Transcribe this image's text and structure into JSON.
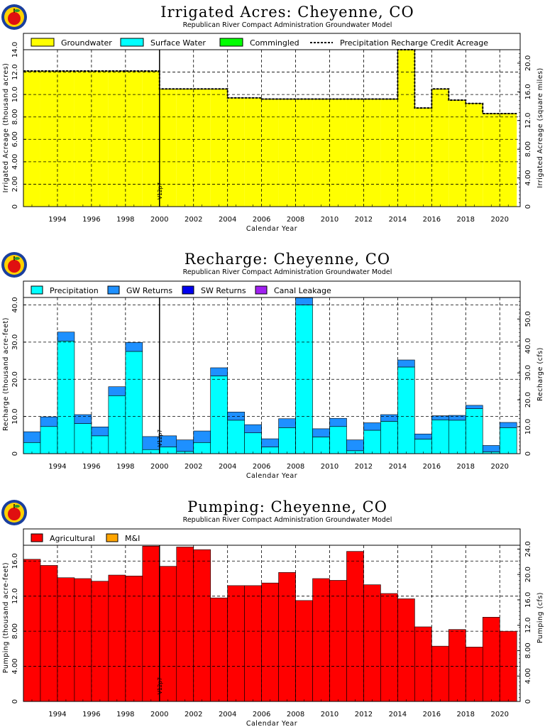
{
  "chart_data": [
    {
      "id": "acres",
      "type": "area",
      "title": "Irrigated Acres: Cheyenne, CO",
      "subtitle": "Republican River Compact Administration Groundwater Model",
      "xlabel": "Calendar Year",
      "ylabel": "Irrigated Acreage (thousand acres)",
      "y2label": "Irrigated Acreage (square miles)",
      "xlim": [
        1992.5,
        2021.7
      ],
      "ylim": [
        0,
        14.0
      ],
      "y2lim": [
        0,
        21.875
      ],
      "yticks": [
        "0",
        "2.00",
        "4.00",
        "6.00",
        "8.00",
        "10.0",
        "12.0",
        "14.0"
      ],
      "y2ticks": [
        "0",
        "4.00",
        "8.00",
        "12.0",
        "16.0",
        "20.0"
      ],
      "xticks": [
        "1994",
        "1996",
        "1998",
        "2000",
        "2002",
        "2004",
        "2006",
        "2008",
        "2010",
        "2012",
        "2014",
        "2016",
        "2018",
        "2020"
      ],
      "grid": true,
      "legend_position": "top",
      "marker": {
        "x": 2000.5,
        "label": "V12p7"
      },
      "x": [
        1993,
        1994,
        1995,
        1996,
        1997,
        1998,
        1999,
        2000,
        2001,
        2002,
        2003,
        2004,
        2005,
        2006,
        2007,
        2008,
        2009,
        2010,
        2011,
        2012,
        2013,
        2014,
        2015,
        2016,
        2017,
        2018,
        2019,
        2020,
        2021
      ],
      "series": [
        {
          "name": "Groundwater",
          "color": "#ffff00",
          "values": [
            12.1,
            12.1,
            12.1,
            12.1,
            12.1,
            12.1,
            12.1,
            12.1,
            10.5,
            10.5,
            10.5,
            10.5,
            9.7,
            9.7,
            9.6,
            9.6,
            9.6,
            9.6,
            9.6,
            9.6,
            9.6,
            9.6,
            14.0,
            8.8,
            10.5,
            9.5,
            9.2,
            8.3,
            8.3
          ]
        },
        {
          "name": "Surface Water",
          "color": "#00ffff",
          "values": [
            0,
            0,
            0,
            0,
            0,
            0,
            0,
            0,
            0,
            0,
            0,
            0,
            0,
            0,
            0,
            0,
            0,
            0,
            0,
            0,
            0,
            0,
            0,
            0,
            0,
            0,
            0,
            0,
            0
          ]
        },
        {
          "name": "Commingled",
          "color": "#00ff00",
          "values": [
            0,
            0,
            0,
            0,
            0,
            0,
            0,
            0,
            0,
            0,
            0,
            0,
            0,
            0,
            0,
            0,
            0,
            0,
            0,
            0,
            0,
            0,
            0,
            0,
            0,
            0,
            0,
            0,
            0
          ]
        }
      ],
      "line": {
        "name": "Precipitation Recharge Credit Acreage",
        "values": [
          12.1,
          12.1,
          12.1,
          12.1,
          12.1,
          12.1,
          12.1,
          12.1,
          10.5,
          10.5,
          10.5,
          10.5,
          9.7,
          9.7,
          9.6,
          9.6,
          9.6,
          9.6,
          9.6,
          9.6,
          9.6,
          9.6,
          14.0,
          8.8,
          10.5,
          9.5,
          9.2,
          8.3,
          8.3
        ]
      }
    },
    {
      "id": "recharge",
      "type": "bar",
      "title": "Recharge: Cheyenne, CO",
      "subtitle": "Republican River Compact Administration Groundwater Model",
      "xlabel": "Calendar Year",
      "ylabel": "Recharge (thousand acre-feet)",
      "y2label": "Recharge (cfs)",
      "xlim": [
        1992.5,
        2021.7
      ],
      "ylim": [
        0,
        42.0
      ],
      "y2lim": [
        0,
        58.0
      ],
      "yticks": [
        "0",
        "10.0",
        "20.0",
        "30.0",
        "40.0"
      ],
      "y2ticks": [
        "0",
        "10.0",
        "20.0",
        "30.0",
        "40.0",
        "50.0"
      ],
      "xticks": [
        "1994",
        "1996",
        "1998",
        "2000",
        "2002",
        "2004",
        "2006",
        "2008",
        "2010",
        "2012",
        "2014",
        "2016",
        "2018",
        "2020"
      ],
      "grid": true,
      "legend_position": "top",
      "marker": {
        "x": 2000.5,
        "label": "V12p7"
      },
      "x": [
        1993,
        1994,
        1995,
        1996,
        1997,
        1998,
        1999,
        2000,
        2001,
        2002,
        2003,
        2004,
        2005,
        2006,
        2007,
        2008,
        2009,
        2010,
        2011,
        2012,
        2013,
        2014,
        2015,
        2016,
        2017,
        2018,
        2019,
        2020,
        2021
      ],
      "series": [
        {
          "name": "Precipitation",
          "color": "#00ffff",
          "values": [
            3.0,
            7.3,
            30.3,
            8.1,
            4.8,
            15.6,
            27.5,
            1.1,
            1.8,
            0.6,
            3.0,
            20.9,
            9.0,
            5.6,
            1.8,
            7.0,
            40.0,
            4.5,
            7.3,
            0.8,
            6.3,
            8.7,
            23.3,
            3.9,
            9.1,
            9.0,
            12.1,
            0.5,
            7.0
          ]
        },
        {
          "name": "GW Returns",
          "color": "#1e90ff",
          "values": [
            2.9,
            2.6,
            2.4,
            2.4,
            2.4,
            2.4,
            2.4,
            3.5,
            3.0,
            3.1,
            3.1,
            2.2,
            2.2,
            2.2,
            2.2,
            2.4,
            1.9,
            2.2,
            2.2,
            2.9,
            2.0,
            1.8,
            1.9,
            1.4,
            1.1,
            1.3,
            0.9,
            1.7,
            1.4
          ]
        },
        {
          "name": "SW Returns",
          "color": "#0000ee",
          "values": [
            0,
            0,
            0,
            0,
            0,
            0,
            0,
            0,
            0,
            0,
            0,
            0,
            0,
            0,
            0,
            0,
            0,
            0,
            0,
            0,
            0,
            0,
            0,
            0,
            0,
            0,
            0,
            0,
            0
          ]
        },
        {
          "name": "Canal Leakage",
          "color": "#a020f0",
          "values": [
            0,
            0,
            0,
            0,
            0,
            0,
            0,
            0,
            0,
            0,
            0,
            0,
            0,
            0,
            0,
            0,
            0,
            0,
            0,
            0,
            0,
            0,
            0,
            0,
            0,
            0,
            0,
            0,
            0
          ]
        }
      ]
    },
    {
      "id": "pumping",
      "type": "bar",
      "title": "Pumping: Cheyenne, CO",
      "subtitle": "Republican River Compact Administration Groundwater Model",
      "xlabel": "Calendar Year",
      "ylabel": "Pumping (thousand acre-feet)",
      "y2label": "Pumping (cfs)",
      "xlim": [
        1992.5,
        2021.7
      ],
      "ylim": [
        0,
        17.8
      ],
      "y2lim": [
        0,
        24.6
      ],
      "yticks": [
        "0",
        "4.00",
        "8.00",
        "12.0",
        "16.0"
      ],
      "y2ticks": [
        "0",
        "4.00",
        "8.00",
        "12.0",
        "16.0",
        "20.0",
        "24.0"
      ],
      "xticks": [
        "1994",
        "1996",
        "1998",
        "2000",
        "2002",
        "2004",
        "2006",
        "2008",
        "2010",
        "2012",
        "2014",
        "2016",
        "2018",
        "2020"
      ],
      "grid": true,
      "legend_position": "top",
      "marker": {
        "x": 2000.5,
        "label": "V12p7"
      },
      "x": [
        1993,
        1994,
        1995,
        1996,
        1997,
        1998,
        1999,
        2000,
        2001,
        2002,
        2003,
        2004,
        2005,
        2006,
        2007,
        2008,
        2009,
        2010,
        2011,
        2012,
        2013,
        2014,
        2015,
        2016,
        2017,
        2018,
        2019,
        2020,
        2021
      ],
      "series": [
        {
          "name": "Agricultural",
          "color": "#ff0000",
          "values": [
            16.2,
            15.5,
            14.1,
            14.0,
            13.7,
            14.4,
            14.3,
            17.7,
            15.4,
            17.6,
            17.3,
            11.8,
            13.2,
            13.2,
            13.5,
            14.7,
            11.5,
            14.0,
            13.8,
            17.1,
            13.3,
            12.3,
            11.7,
            8.5,
            6.3,
            8.2,
            6.2,
            9.6,
            8.0
          ]
        },
        {
          "name": "M&I",
          "color": "#ffa500",
          "values": [
            0,
            0,
            0,
            0,
            0,
            0,
            0,
            0,
            0,
            0,
            0,
            0,
            0,
            0,
            0,
            0,
            0,
            0,
            0,
            0,
            0,
            0,
            0,
            0,
            0,
            0,
            0,
            0,
            0
          ]
        }
      ]
    }
  ]
}
